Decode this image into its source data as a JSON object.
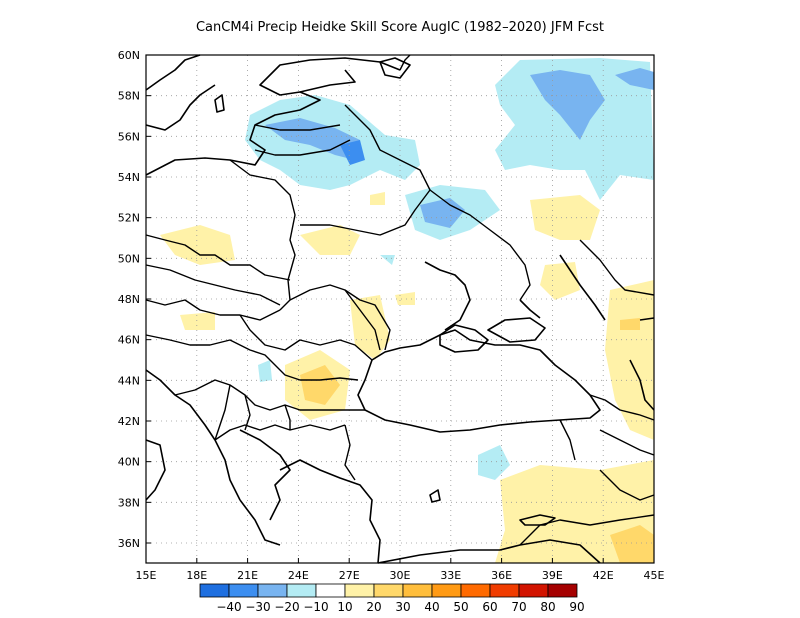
{
  "title": "CanCM4i Precip Heidke Skill Score AugIC (1982–2020) JFM Fcst",
  "axes": {
    "lon_ticks": [
      "15E",
      "18E",
      "21E",
      "24E",
      "27E",
      "30E",
      "33E",
      "36E",
      "39E",
      "42E",
      "45E"
    ],
    "lat_ticks": [
      "36N",
      "38N",
      "40N",
      "42N",
      "44N",
      "46N",
      "48N",
      "50N",
      "52N",
      "54N",
      "56N",
      "58N",
      "60N"
    ]
  },
  "colorbar": {
    "labels": [
      "−40",
      "−30",
      "−20",
      "−10",
      "10",
      "20",
      "30",
      "40",
      "50",
      "60",
      "70",
      "80",
      "90"
    ],
    "colors": [
      "#1e6fe0",
      "#3c8ef0",
      "#78b4f0",
      "#b4ecf4",
      "#ffffff",
      "#fff2a8",
      "#ffd86a",
      "#ffbe3c",
      "#ff9a14",
      "#ff6a00",
      "#f03c00",
      "#d21400",
      "#a50000"
    ]
  },
  "regions": {
    "light_blue": "#b4ecf4",
    "mid_blue": "#78b4f0",
    "light_yellow": "#fff2a8",
    "mid_yellow": "#ffd86a"
  }
}
